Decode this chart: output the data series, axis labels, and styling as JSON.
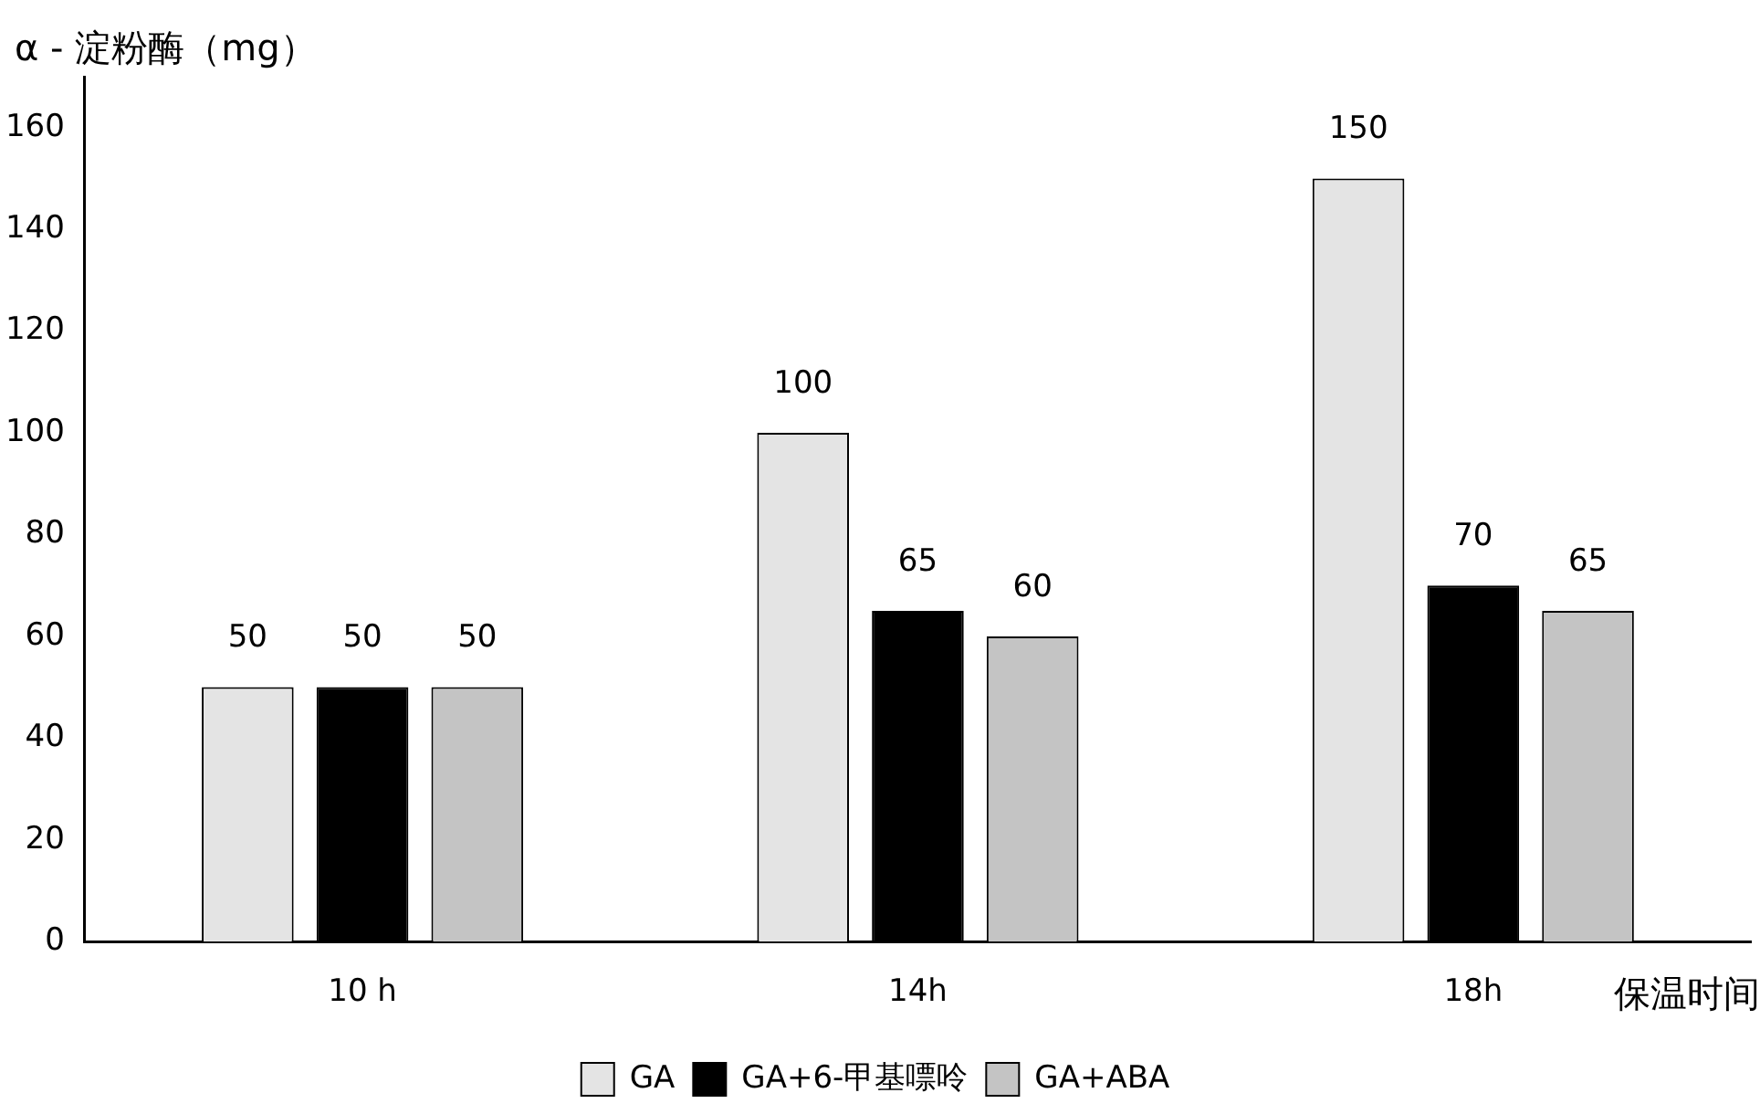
{
  "chart_data": {
    "type": "bar",
    "ylabel": "α - 淀粉酶（mg）",
    "xlabel": "保温时间",
    "categories": [
      "10 h",
      "14h",
      "18h"
    ],
    "series": [
      {
        "name": "GA",
        "color": "#e4e4e4",
        "values": [
          50,
          100,
          150
        ]
      },
      {
        "name": "GA+6-甲基嘌呤",
        "color": "#000000",
        "values": [
          50,
          65,
          70
        ]
      },
      {
        "name": "GA+ABA",
        "color": "#c4c4c4",
        "values": [
          50,
          60,
          65
        ]
      }
    ],
    "ylim": [
      0,
      170
    ],
    "yticks": [
      0,
      20,
      40,
      60,
      80,
      100,
      120,
      140,
      160
    ],
    "grid": false,
    "legend": "bottom",
    "data_labels": true
  }
}
